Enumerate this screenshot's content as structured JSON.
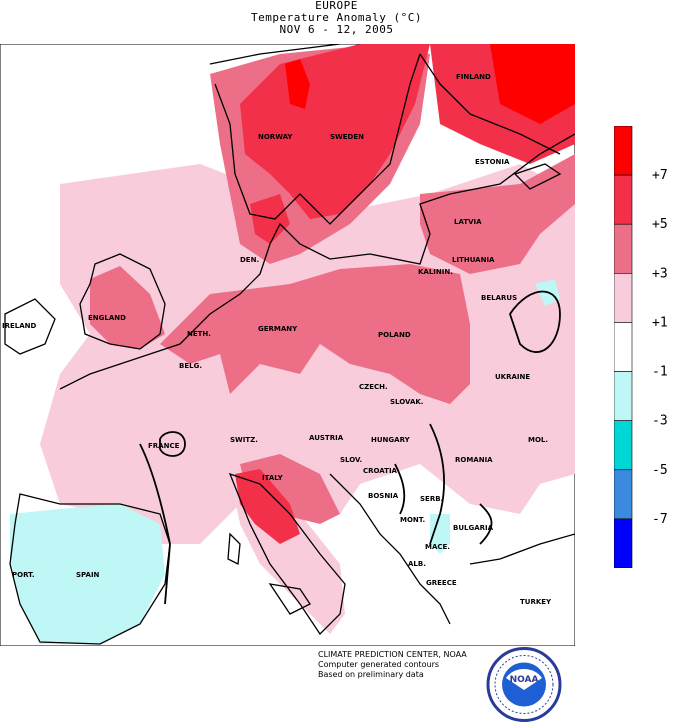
{
  "header": {
    "region": "EUROPE",
    "title": "Temperature Anomaly (°C)",
    "period": "NOV 6 - 12, 2005"
  },
  "legend": {
    "bins": [
      {
        "color": "#ff0000"
      },
      {
        "color": "#f2304a"
      },
      {
        "color": "#ec6f87"
      },
      {
        "color": "#f8ccdb"
      },
      {
        "color": "#ffffff"
      },
      {
        "color": "#bff6f6"
      },
      {
        "color": "#00d6d6"
      },
      {
        "color": "#3b8ae0"
      },
      {
        "color": "#0000ff"
      }
    ],
    "labels": [
      "+7",
      "+5",
      "+3",
      "+1",
      "-1",
      "-3",
      "-5",
      "-7"
    ]
  },
  "countries": [
    {
      "name": "NORWAY"
    },
    {
      "name": "SWEDEN"
    },
    {
      "name": "FINLAND"
    },
    {
      "name": "ESTONIA"
    },
    {
      "name": "LATVIA"
    },
    {
      "name": "LITHUANIA"
    },
    {
      "name": "KALININ."
    },
    {
      "name": "BELARUS"
    },
    {
      "name": "DEN."
    },
    {
      "name": "ENGLAND"
    },
    {
      "name": "IRELAND"
    },
    {
      "name": "NETH."
    },
    {
      "name": "BELG."
    },
    {
      "name": "GERMANY"
    },
    {
      "name": "POLAND"
    },
    {
      "name": "UKRAINE"
    },
    {
      "name": "CZECH."
    },
    {
      "name": "SLOVAK."
    },
    {
      "name": "FRANCE"
    },
    {
      "name": "SWITZ."
    },
    {
      "name": "AUSTRIA"
    },
    {
      "name": "HUNGARY"
    },
    {
      "name": "ROMANIA"
    },
    {
      "name": "MOL."
    },
    {
      "name": "SLOV."
    },
    {
      "name": "CROATIA"
    },
    {
      "name": "BOSNIA"
    },
    {
      "name": "SERB."
    },
    {
      "name": "ITALY"
    },
    {
      "name": "MONT."
    },
    {
      "name": "BULGARIA"
    },
    {
      "name": "MACE."
    },
    {
      "name": "ALB."
    },
    {
      "name": "GREECE"
    },
    {
      "name": "PORT."
    },
    {
      "name": "SPAIN"
    },
    {
      "name": "TURKEY"
    }
  ],
  "credit": {
    "line1": "CLIMATE PREDICTION CENTER, NOAA",
    "line2": "Computer generated contours",
    "line3": "Based on preliminary data"
  },
  "logo": {
    "text": "NOAA",
    "ring_color": "#2a3b9a",
    "sea_color": "#1f5fd6"
  }
}
